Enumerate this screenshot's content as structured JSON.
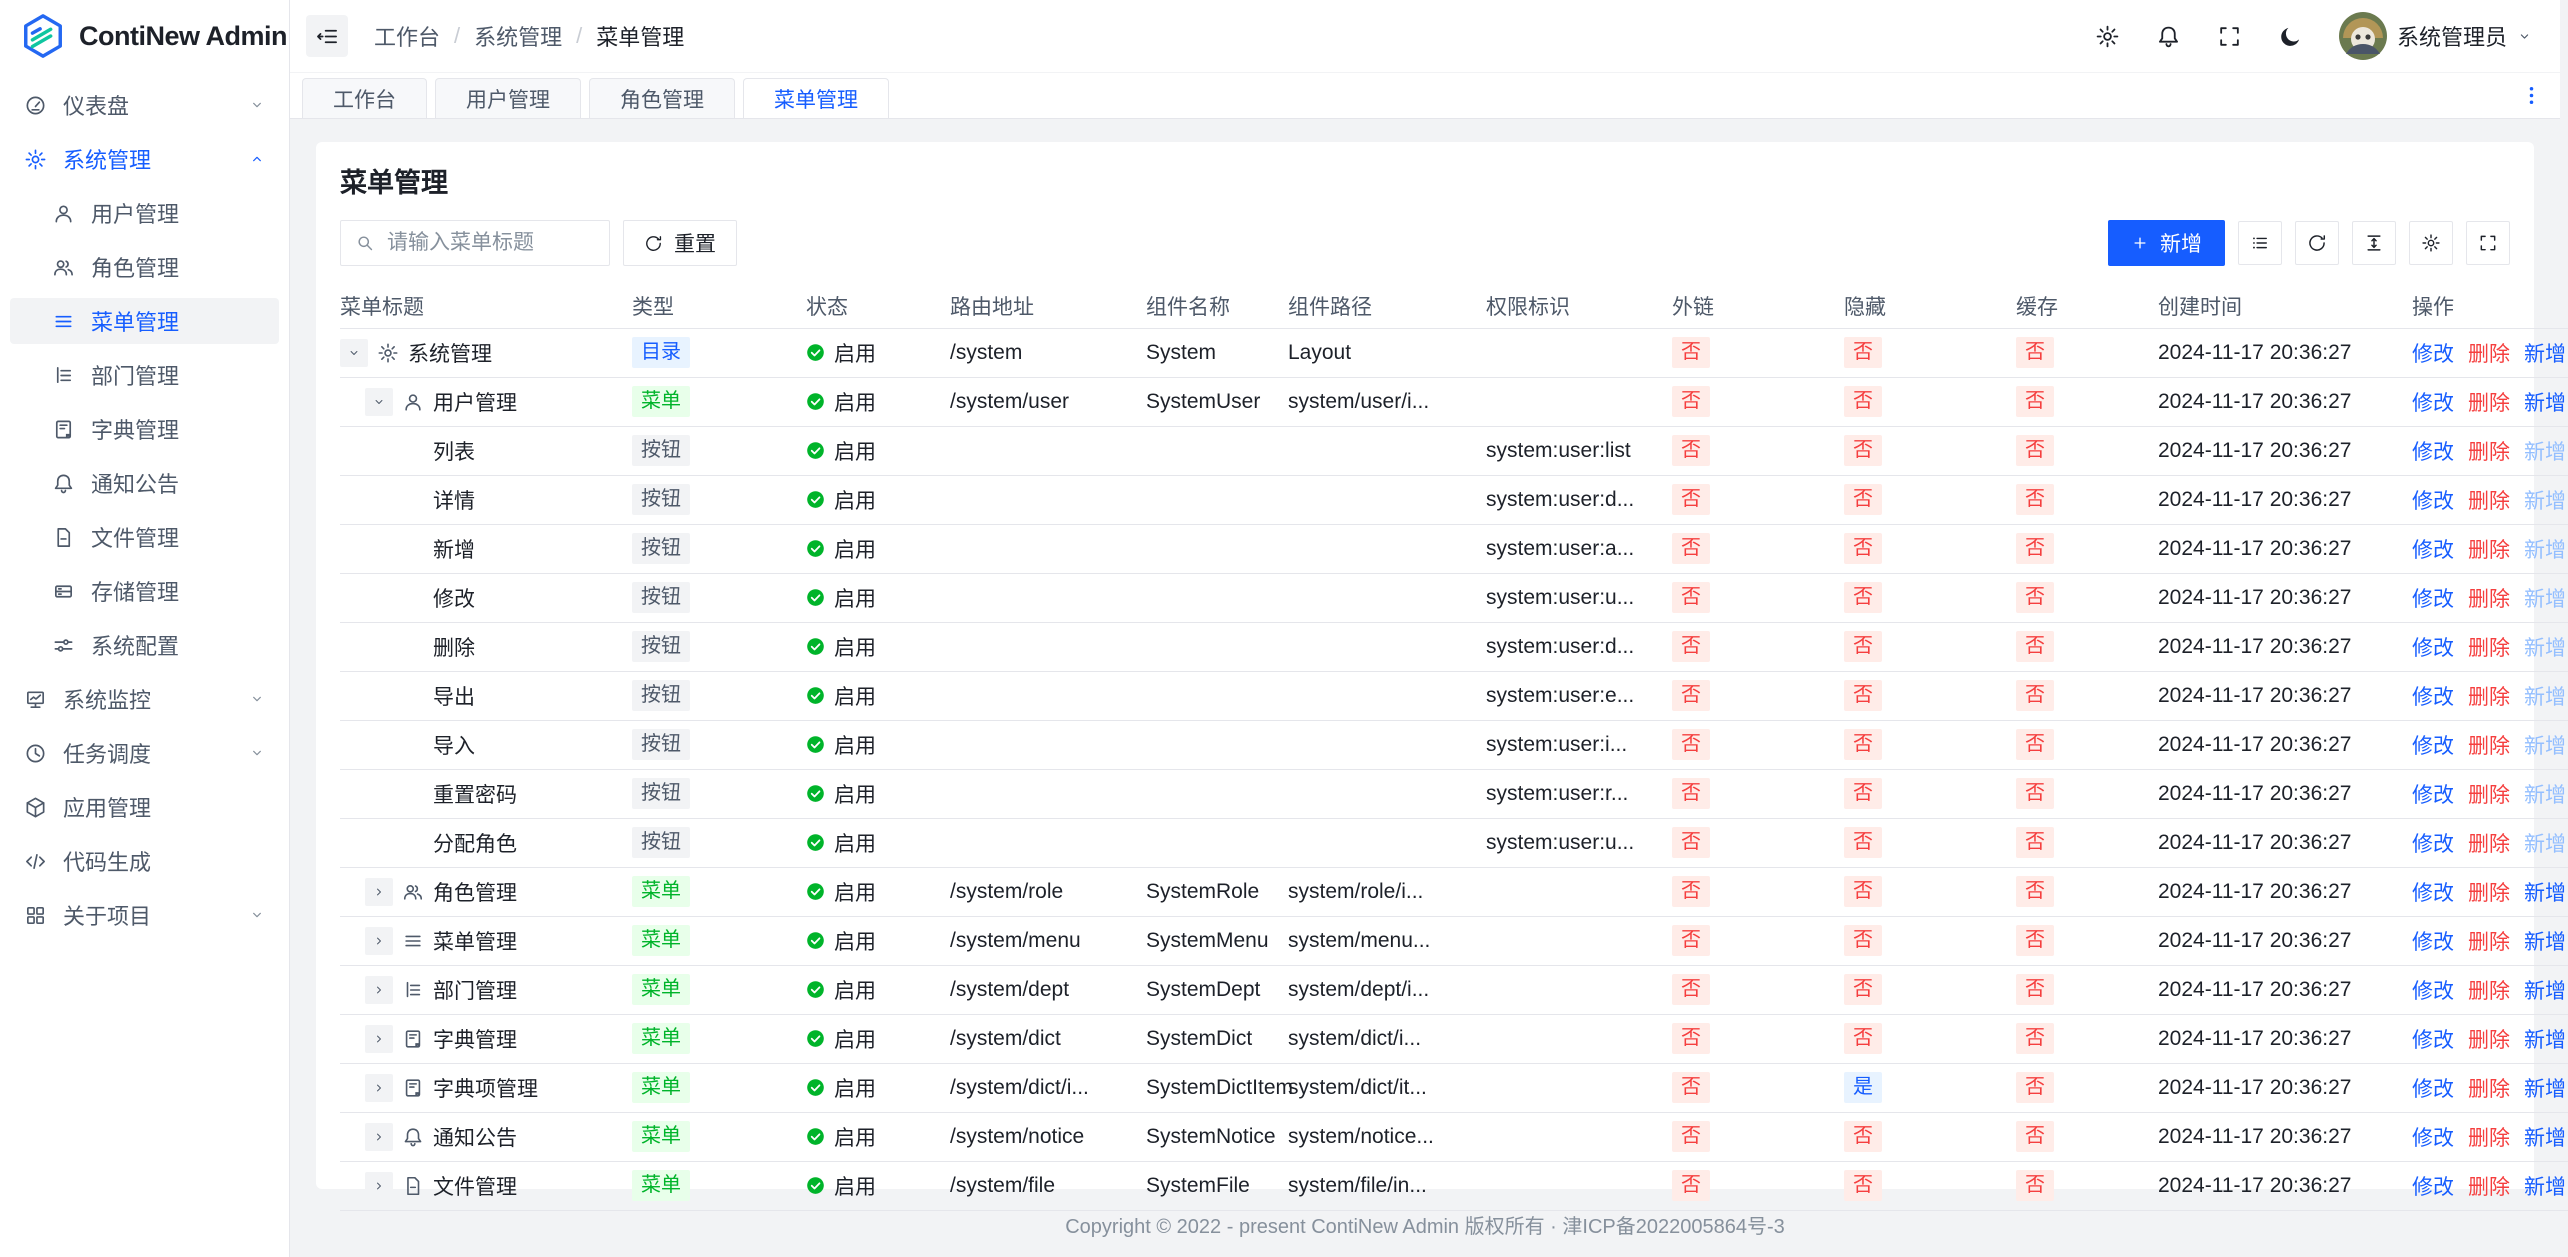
{
  "app": {
    "name": "ContiNew Admin"
  },
  "colors": {
    "primary": "#165dff",
    "success": "#00b42a",
    "danger": "#f53f3f",
    "warning_bg": "#ffece8",
    "info_bg": "#e8f3ff"
  },
  "header": {
    "collapse_icon": "collapse-icon",
    "breadcrumb": [
      "工作台",
      "系统管理",
      "菜单管理"
    ],
    "action_icons": [
      "settings-icon",
      "bell-icon",
      "fullscreen-icon",
      "moon-icon"
    ],
    "user_name": "系统管理员",
    "user_chevron": "chevron-down-icon"
  },
  "tabs": {
    "items": [
      {
        "label": "工作台",
        "active": false
      },
      {
        "label": "用户管理",
        "active": false
      },
      {
        "label": "角色管理",
        "active": false
      },
      {
        "label": "菜单管理",
        "active": true
      }
    ],
    "more_icon": "more-vertical-icon"
  },
  "sidebar": {
    "items": [
      {
        "label": "仪表盘",
        "icon": "dashboard-icon",
        "level": 0,
        "chevron": "down"
      },
      {
        "label": "系统管理",
        "icon": "gear-icon",
        "level": 0,
        "chevron": "up",
        "parent_active": true
      },
      {
        "label": "用户管理",
        "icon": "user-icon",
        "level": 1
      },
      {
        "label": "角色管理",
        "icon": "users-icon",
        "level": 1
      },
      {
        "label": "菜单管理",
        "icon": "menu-icon",
        "level": 1,
        "active": true
      },
      {
        "label": "部门管理",
        "icon": "dept-icon",
        "level": 1
      },
      {
        "label": "字典管理",
        "icon": "dict-icon",
        "level": 1
      },
      {
        "label": "通知公告",
        "icon": "bell-icon",
        "level": 1
      },
      {
        "label": "文件管理",
        "icon": "file-icon",
        "level": 1
      },
      {
        "label": "存储管理",
        "icon": "storage-icon",
        "level": 1
      },
      {
        "label": "系统配置",
        "icon": "sliders-icon",
        "level": 1
      },
      {
        "label": "系统监控",
        "icon": "monitor-icon",
        "level": 0,
        "chevron": "down"
      },
      {
        "label": "任务调度",
        "icon": "clock-icon",
        "level": 0,
        "chevron": "down"
      },
      {
        "label": "应用管理",
        "icon": "cube-icon",
        "level": 0
      },
      {
        "label": "代码生成",
        "icon": "code-icon",
        "level": 0
      },
      {
        "label": "关于项目",
        "icon": "grid-icon",
        "level": 0,
        "chevron": "down"
      }
    ]
  },
  "page": {
    "title": "菜单管理"
  },
  "search": {
    "icon": "search-icon",
    "placeholder": "请输入菜单标题",
    "reset_icon": "refresh-icon",
    "reset_label": "重置"
  },
  "toolbar": {
    "add_icon": "plus-icon",
    "add_label": "新增",
    "tool_icons": [
      "list-view-icon",
      "refresh-icon",
      "row-height-icon",
      "settings-icon",
      "fullscreen-icon"
    ]
  },
  "table": {
    "columns": [
      "菜单标题",
      "类型",
      "状态",
      "路由地址",
      "组件名称",
      "组件路径",
      "权限标识",
      "外链",
      "隐藏",
      "缓存",
      "创建时间",
      "操作"
    ],
    "status_icon": "check-circle-icon",
    "action_labels": {
      "edit": "修改",
      "delete": "删除",
      "add": "新增"
    },
    "rows": [
      {
        "title": "系统管理",
        "level": 0,
        "expand": "down",
        "icon": "gear-icon",
        "type": "目录",
        "type_color": "blue",
        "status": "启用",
        "route": "/system",
        "component": "System",
        "path": "Layout",
        "permission": "",
        "external": "否",
        "hidden": "否",
        "cache": "否",
        "created": "2024-11-17 20:36:27",
        "add_enabled": true
      },
      {
        "title": "用户管理",
        "level": 1,
        "expand": "down",
        "icon": "user-icon",
        "type": "菜单",
        "type_color": "green",
        "status": "启用",
        "route": "/system/user",
        "component": "SystemUser",
        "path": "system/user/i...",
        "permission": "",
        "external": "否",
        "hidden": "否",
        "cache": "否",
        "created": "2024-11-17 20:36:27",
        "add_enabled": true
      },
      {
        "title": "列表",
        "level": 2,
        "expand": null,
        "icon": null,
        "type": "按钮",
        "type_color": "gray",
        "status": "启用",
        "route": "",
        "component": "",
        "path": "",
        "permission": "system:user:list",
        "external": "否",
        "hidden": "否",
        "cache": "否",
        "created": "2024-11-17 20:36:27",
        "add_enabled": false
      },
      {
        "title": "详情",
        "level": 2,
        "expand": null,
        "icon": null,
        "type": "按钮",
        "type_color": "gray",
        "status": "启用",
        "route": "",
        "component": "",
        "path": "",
        "permission": "system:user:d...",
        "external": "否",
        "hidden": "否",
        "cache": "否",
        "created": "2024-11-17 20:36:27",
        "add_enabled": false
      },
      {
        "title": "新增",
        "level": 2,
        "expand": null,
        "icon": null,
        "type": "按钮",
        "type_color": "gray",
        "status": "启用",
        "route": "",
        "component": "",
        "path": "",
        "permission": "system:user:a...",
        "external": "否",
        "hidden": "否",
        "cache": "否",
        "created": "2024-11-17 20:36:27",
        "add_enabled": false
      },
      {
        "title": "修改",
        "level": 2,
        "expand": null,
        "icon": null,
        "type": "按钮",
        "type_color": "gray",
        "status": "启用",
        "route": "",
        "component": "",
        "path": "",
        "permission": "system:user:u...",
        "external": "否",
        "hidden": "否",
        "cache": "否",
        "created": "2024-11-17 20:36:27",
        "add_enabled": false
      },
      {
        "title": "删除",
        "level": 2,
        "expand": null,
        "icon": null,
        "type": "按钮",
        "type_color": "gray",
        "status": "启用",
        "route": "",
        "component": "",
        "path": "",
        "permission": "system:user:d...",
        "external": "否",
        "hidden": "否",
        "cache": "否",
        "created": "2024-11-17 20:36:27",
        "add_enabled": false
      },
      {
        "title": "导出",
        "level": 2,
        "expand": null,
        "icon": null,
        "type": "按钮",
        "type_color": "gray",
        "status": "启用",
        "route": "",
        "component": "",
        "path": "",
        "permission": "system:user:e...",
        "external": "否",
        "hidden": "否",
        "cache": "否",
        "created": "2024-11-17 20:36:27",
        "add_enabled": false
      },
      {
        "title": "导入",
        "level": 2,
        "expand": null,
        "icon": null,
        "type": "按钮",
        "type_color": "gray",
        "status": "启用",
        "route": "",
        "component": "",
        "path": "",
        "permission": "system:user:i...",
        "external": "否",
        "hidden": "否",
        "cache": "否",
        "created": "2024-11-17 20:36:27",
        "add_enabled": false
      },
      {
        "title": "重置密码",
        "level": 2,
        "expand": null,
        "icon": null,
        "type": "按钮",
        "type_color": "gray",
        "status": "启用",
        "route": "",
        "component": "",
        "path": "",
        "permission": "system:user:r...",
        "external": "否",
        "hidden": "否",
        "cache": "否",
        "created": "2024-11-17 20:36:27",
        "add_enabled": false
      },
      {
        "title": "分配角色",
        "level": 2,
        "expand": null,
        "icon": null,
        "type": "按钮",
        "type_color": "gray",
        "status": "启用",
        "route": "",
        "component": "",
        "path": "",
        "permission": "system:user:u...",
        "external": "否",
        "hidden": "否",
        "cache": "否",
        "created": "2024-11-17 20:36:27",
        "add_enabled": false
      },
      {
        "title": "角色管理",
        "level": 1,
        "expand": "right",
        "icon": "users-icon",
        "type": "菜单",
        "type_color": "green",
        "status": "启用",
        "route": "/system/role",
        "component": "SystemRole",
        "path": "system/role/i...",
        "permission": "",
        "external": "否",
        "hidden": "否",
        "cache": "否",
        "created": "2024-11-17 20:36:27",
        "add_enabled": true
      },
      {
        "title": "菜单管理",
        "level": 1,
        "expand": "right",
        "icon": "menu-icon",
        "type": "菜单",
        "type_color": "green",
        "status": "启用",
        "route": "/system/menu",
        "component": "SystemMenu",
        "path": "system/menu...",
        "permission": "",
        "external": "否",
        "hidden": "否",
        "cache": "否",
        "created": "2024-11-17 20:36:27",
        "add_enabled": true
      },
      {
        "title": "部门管理",
        "level": 1,
        "expand": "right",
        "icon": "dept-icon",
        "type": "菜单",
        "type_color": "green",
        "status": "启用",
        "route": "/system/dept",
        "component": "SystemDept",
        "path": "system/dept/i...",
        "permission": "",
        "external": "否",
        "hidden": "否",
        "cache": "否",
        "created": "2024-11-17 20:36:27",
        "add_enabled": true
      },
      {
        "title": "字典管理",
        "level": 1,
        "expand": "right",
        "icon": "dict-icon",
        "type": "菜单",
        "type_color": "green",
        "status": "启用",
        "route": "/system/dict",
        "component": "SystemDict",
        "path": "system/dict/i...",
        "permission": "",
        "external": "否",
        "hidden": "否",
        "cache": "否",
        "created": "2024-11-17 20:36:27",
        "add_enabled": true
      },
      {
        "title": "字典项管理",
        "level": 1,
        "expand": "right",
        "icon": "dict-icon",
        "type": "菜单",
        "type_color": "green",
        "status": "启用",
        "route": "/system/dict/i...",
        "component": "SystemDictItem",
        "path": "system/dict/it...",
        "permission": "",
        "external": "否",
        "hidden": "是",
        "cache": "否",
        "created": "2024-11-17 20:36:27",
        "add_enabled": true
      },
      {
        "title": "通知公告",
        "level": 1,
        "expand": "right",
        "icon": "bell-icon",
        "type": "菜单",
        "type_color": "green",
        "status": "启用",
        "route": "/system/notice",
        "component": "SystemNotice",
        "path": "system/notice...",
        "permission": "",
        "external": "否",
        "hidden": "否",
        "cache": "否",
        "created": "2024-11-17 20:36:27",
        "add_enabled": true
      },
      {
        "title": "文件管理",
        "level": 1,
        "expand": "right",
        "icon": "file-icon",
        "type": "菜单",
        "type_color": "green",
        "status": "启用",
        "route": "/system/file",
        "component": "SystemFile",
        "path": "system/file/in...",
        "permission": "",
        "external": "否",
        "hidden": "否",
        "cache": "否",
        "created": "2024-11-17 20:36:27",
        "add_enabled": true
      }
    ]
  },
  "footer": {
    "copyright": "Copyright © 2022 - present ContiNew Admin 版权所有 · 津ICP备2022005864号-3"
  }
}
